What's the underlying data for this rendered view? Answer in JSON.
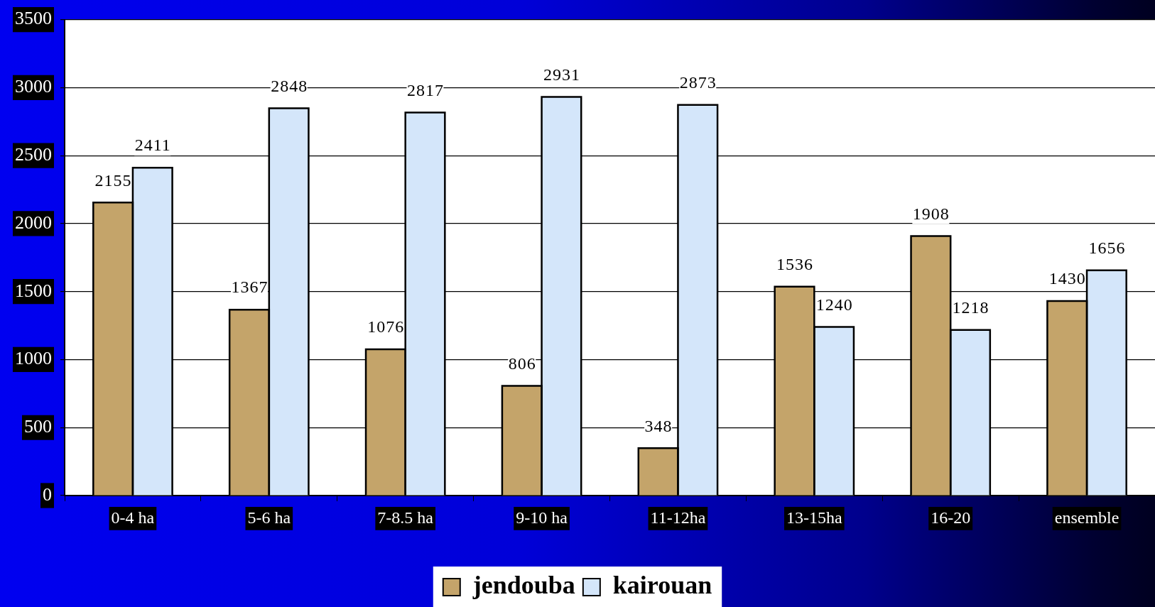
{
  "chart_data": {
    "type": "bar",
    "categories": [
      "0-4 ha",
      "5-6 ha",
      "7-8.5 ha",
      "9-10 ha",
      "11-12ha",
      "13-15ha",
      "16-20",
      "ensemble"
    ],
    "series": [
      {
        "name": "jendouba",
        "color": "#c4a46a",
        "values": [
          2155,
          1367,
          1076,
          806,
          348,
          1536,
          1908,
          1430
        ]
      },
      {
        "name": "kairouan",
        "color": "#d4e6fa",
        "values": [
          2411,
          2848,
          2817,
          2931,
          2873,
          1240,
          1218,
          1656
        ]
      }
    ],
    "ylim": [
      0,
      3500
    ],
    "yticks": [
      0,
      500,
      1000,
      1500,
      2000,
      2500,
      3000,
      3500
    ],
    "grid": "y",
    "legend": "bottom",
    "data_labels": true
  }
}
